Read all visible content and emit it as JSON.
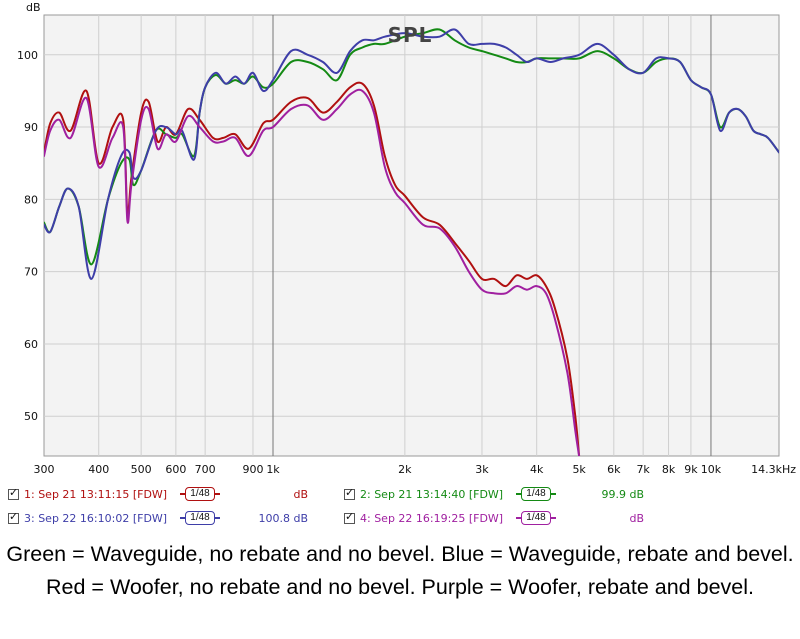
{
  "chart_data": {
    "type": "line",
    "title": "SPL",
    "ylabel": "dB",
    "xlim": [
      300,
      14300
    ],
    "ylim": [
      44.5,
      105.5
    ],
    "x_scale": "log",
    "grid": true,
    "x_ticks": [
      {
        "v": 300,
        "label": "300"
      },
      {
        "v": 400,
        "label": "400"
      },
      {
        "v": 500,
        "label": "500"
      },
      {
        "v": 600,
        "label": "600"
      },
      {
        "v": 700,
        "label": "700"
      },
      {
        "v": 900,
        "label": "900"
      },
      {
        "v": 1000,
        "label": "1k"
      },
      {
        "v": 2000,
        "label": "2k"
      },
      {
        "v": 3000,
        "label": "3k"
      },
      {
        "v": 4000,
        "label": "4k"
      },
      {
        "v": 5000,
        "label": "5k"
      },
      {
        "v": 6000,
        "label": "6k"
      },
      {
        "v": 7000,
        "label": "7k"
      },
      {
        "v": 8000,
        "label": "8k"
      },
      {
        "v": 9000,
        "label": "9k"
      },
      {
        "v": 10000,
        "label": "10k"
      },
      {
        "v": 14300,
        "label": "14.3kHz"
      }
    ],
    "y_ticks": [
      50,
      60,
      70,
      80,
      90,
      100
    ],
    "series": [
      {
        "name": "1: Sep 21 13:11:15 [FDW]",
        "color": "#b01010",
        "smoothing": "1/48",
        "legend_value": "dB",
        "points": [
          [
            300,
            86.5
          ],
          [
            310,
            90.5
          ],
          [
            325,
            92
          ],
          [
            345,
            89.5
          ],
          [
            375,
            95
          ],
          [
            400,
            85
          ],
          [
            430,
            90
          ],
          [
            455,
            91
          ],
          [
            465,
            78
          ],
          [
            475,
            83
          ],
          [
            500,
            92
          ],
          [
            520,
            93.5
          ],
          [
            545,
            88
          ],
          [
            570,
            90
          ],
          [
            600,
            89
          ],
          [
            640,
            92.5
          ],
          [
            680,
            91
          ],
          [
            730,
            88.5
          ],
          [
            770,
            88.5
          ],
          [
            820,
            89
          ],
          [
            880,
            87
          ],
          [
            950,
            90.5
          ],
          [
            1000,
            91
          ],
          [
            1100,
            93.5
          ],
          [
            1200,
            94
          ],
          [
            1300,
            92
          ],
          [
            1400,
            93.5
          ],
          [
            1500,
            95.5
          ],
          [
            1600,
            96
          ],
          [
            1700,
            93
          ],
          [
            1800,
            86
          ],
          [
            1900,
            82
          ],
          [
            2000,
            80.5
          ],
          [
            2200,
            77.5
          ],
          [
            2400,
            76.5
          ],
          [
            2600,
            74
          ],
          [
            2800,
            71.5
          ],
          [
            3000,
            69
          ],
          [
            3200,
            69
          ],
          [
            3400,
            68
          ],
          [
            3600,
            69.5
          ],
          [
            3800,
            69
          ],
          [
            4000,
            69.5
          ],
          [
            4200,
            68
          ],
          [
            4400,
            65
          ],
          [
            4700,
            58
          ],
          [
            4900,
            50
          ],
          [
            5000,
            44.5
          ]
        ]
      },
      {
        "name": "2: Sep 21 13:14:40 [FDW]",
        "color": "#148a14",
        "smoothing": "1/48",
        "legend_value": "99.9 dB",
        "points": [
          [
            300,
            76.8
          ],
          [
            310,
            75.5
          ],
          [
            325,
            79
          ],
          [
            340,
            81.5
          ],
          [
            360,
            79
          ],
          [
            385,
            71
          ],
          [
            420,
            80
          ],
          [
            450,
            85
          ],
          [
            470,
            85.5
          ],
          [
            480,
            82
          ],
          [
            500,
            84
          ],
          [
            540,
            89.5
          ],
          [
            570,
            89
          ],
          [
            600,
            88.5
          ],
          [
            620,
            89
          ],
          [
            660,
            86
          ],
          [
            680,
            92
          ],
          [
            700,
            95.5
          ],
          [
            740,
            97.2
          ],
          [
            780,
            96
          ],
          [
            820,
            96.5
          ],
          [
            860,
            96
          ],
          [
            900,
            97
          ],
          [
            950,
            95.5
          ],
          [
            1000,
            96
          ],
          [
            1100,
            99
          ],
          [
            1200,
            99
          ],
          [
            1300,
            98
          ],
          [
            1400,
            96.5
          ],
          [
            1500,
            100
          ],
          [
            1600,
            101
          ],
          [
            1700,
            101.5
          ],
          [
            1800,
            101.5
          ],
          [
            2000,
            102.5
          ],
          [
            2200,
            103
          ],
          [
            2400,
            103.5
          ],
          [
            2600,
            102
          ],
          [
            2800,
            101
          ],
          [
            3000,
            100.5
          ],
          [
            3200,
            100
          ],
          [
            3400,
            99.5
          ],
          [
            3600,
            99
          ],
          [
            3800,
            99
          ],
          [
            4000,
            99.5
          ],
          [
            4300,
            99.5
          ],
          [
            4600,
            99.5
          ],
          [
            5000,
            99.5
          ],
          [
            5500,
            100.5
          ],
          [
            6000,
            99.5
          ],
          [
            6500,
            98
          ],
          [
            7000,
            97.5
          ],
          [
            7500,
            99
          ],
          [
            8000,
            99.5
          ],
          [
            8500,
            99
          ],
          [
            9000,
            96.5
          ],
          [
            9500,
            95.5
          ],
          [
            10000,
            94.5
          ],
          [
            10500,
            90
          ],
          [
            11000,
            92
          ],
          [
            11500,
            92.5
          ],
          [
            12000,
            91.5
          ],
          [
            12500,
            89.5
          ],
          [
            13000,
            89
          ],
          [
            13500,
            88.5
          ],
          [
            14300,
            86.5
          ]
        ]
      },
      {
        "name": "3: Sep 22 16:10:02 [FDW]",
        "color": "#3e3ea8",
        "smoothing": "1/48",
        "legend_value": "100.8 dB",
        "points": [
          [
            300,
            76.5
          ],
          [
            310,
            75.5
          ],
          [
            325,
            79
          ],
          [
            340,
            81.5
          ],
          [
            360,
            79
          ],
          [
            385,
            69
          ],
          [
            420,
            80
          ],
          [
            450,
            86
          ],
          [
            470,
            86.5
          ],
          [
            480,
            83
          ],
          [
            500,
            84
          ],
          [
            540,
            89.5
          ],
          [
            570,
            90
          ],
          [
            600,
            89
          ],
          [
            620,
            89.5
          ],
          [
            660,
            85.5
          ],
          [
            680,
            92
          ],
          [
            700,
            95.5
          ],
          [
            740,
            97.5
          ],
          [
            780,
            96
          ],
          [
            820,
            97
          ],
          [
            860,
            96
          ],
          [
            900,
            97.5
          ],
          [
            950,
            95
          ],
          [
            1000,
            96.5
          ],
          [
            1100,
            100.5
          ],
          [
            1200,
            100
          ],
          [
            1300,
            99
          ],
          [
            1400,
            97.5
          ],
          [
            1500,
            100.5
          ],
          [
            1600,
            102
          ],
          [
            1700,
            102
          ],
          [
            1800,
            102.5
          ],
          [
            2000,
            103
          ],
          [
            2200,
            102.5
          ],
          [
            2400,
            102.5
          ],
          [
            2600,
            103.5
          ],
          [
            2800,
            101.5
          ],
          [
            3000,
            101.5
          ],
          [
            3200,
            101.5
          ],
          [
            3400,
            101
          ],
          [
            3600,
            100
          ],
          [
            3800,
            99
          ],
          [
            4000,
            99.5
          ],
          [
            4300,
            99
          ],
          [
            4600,
            99.5
          ],
          [
            5000,
            100
          ],
          [
            5500,
            101.5
          ],
          [
            6000,
            100
          ],
          [
            6500,
            98
          ],
          [
            7000,
            97.5
          ],
          [
            7500,
            99.5
          ],
          [
            8000,
            99.5
          ],
          [
            8500,
            99
          ],
          [
            9000,
            96.5
          ],
          [
            9500,
            95.5
          ],
          [
            10000,
            94.5
          ],
          [
            10500,
            89.5
          ],
          [
            11000,
            92
          ],
          [
            11500,
            92.5
          ],
          [
            12000,
            91.5
          ],
          [
            12500,
            89.5
          ],
          [
            13000,
            89
          ],
          [
            13500,
            88.5
          ],
          [
            14300,
            86.5
          ]
        ]
      },
      {
        "name": "4: Sep 22 16:19:25 [FDW]",
        "color": "#a020a0",
        "smoothing": "1/48",
        "legend_value": "dB",
        "points": [
          [
            300,
            86
          ],
          [
            310,
            89.5
          ],
          [
            325,
            91
          ],
          [
            345,
            88.5
          ],
          [
            375,
            94
          ],
          [
            400,
            84.5
          ],
          [
            430,
            88.5
          ],
          [
            455,
            90
          ],
          [
            465,
            77
          ],
          [
            475,
            82
          ],
          [
            500,
            91
          ],
          [
            520,
            92.5
          ],
          [
            545,
            87
          ],
          [
            570,
            89
          ],
          [
            600,
            88
          ],
          [
            640,
            91.5
          ],
          [
            680,
            90
          ],
          [
            730,
            88
          ],
          [
            770,
            88
          ],
          [
            820,
            88.5
          ],
          [
            880,
            86
          ],
          [
            950,
            89.5
          ],
          [
            1000,
            90
          ],
          [
            1100,
            92.5
          ],
          [
            1200,
            93
          ],
          [
            1300,
            91
          ],
          [
            1400,
            92.5
          ],
          [
            1500,
            94.5
          ],
          [
            1600,
            95
          ],
          [
            1700,
            92
          ],
          [
            1800,
            84.5
          ],
          [
            1900,
            81
          ],
          [
            2000,
            79.5
          ],
          [
            2200,
            76.5
          ],
          [
            2400,
            76
          ],
          [
            2600,
            73.5
          ],
          [
            2800,
            70
          ],
          [
            3000,
            67.5
          ],
          [
            3200,
            67
          ],
          [
            3400,
            67
          ],
          [
            3600,
            68
          ],
          [
            3800,
            67.5
          ],
          [
            4000,
            68
          ],
          [
            4200,
            67
          ],
          [
            4400,
            63.5
          ],
          [
            4700,
            56
          ],
          [
            4900,
            48
          ],
          [
            5000,
            44.5
          ]
        ]
      }
    ]
  },
  "legend": [
    {
      "checked": true,
      "label": "1: Sep 21 13:11:15 [FDW]",
      "smoothing": "1/48",
      "value": "dB",
      "color": "#b01010"
    },
    {
      "checked": true,
      "label": "2: Sep 21 13:14:40 [FDW]",
      "smoothing": "1/48",
      "value": "99.9 dB",
      "color": "#148a14"
    },
    {
      "checked": true,
      "label": "3: Sep 22 16:10:02 [FDW]",
      "smoothing": "1/48",
      "value": "100.8 dB",
      "color": "#3e3ea8"
    },
    {
      "checked": true,
      "label": "4: Sep 22 16:19:25 [FDW]",
      "smoothing": "1/48",
      "value": "dB",
      "color": "#a020a0"
    }
  ],
  "caption": "Green = Waveguide, no rebate and no bevel. Blue = Waveguide, rebate and bevel. Red = Woofer, no rebate and no bevel. Purple = Woofer, rebate and bevel."
}
